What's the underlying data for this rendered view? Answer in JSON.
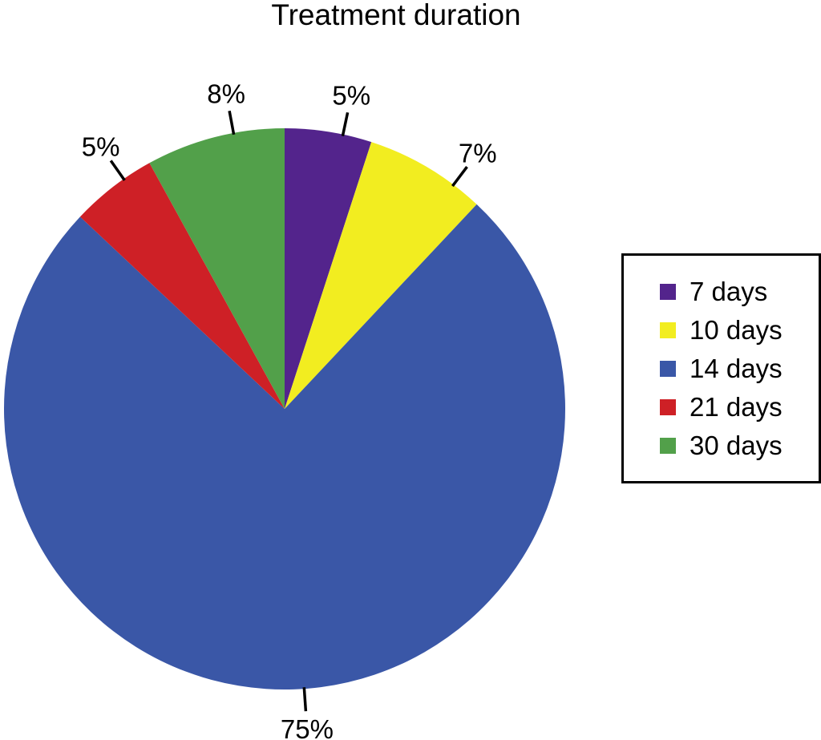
{
  "page": {
    "background": "#FFFFFF"
  },
  "chart_data": {
    "type": "pie",
    "title": "Treatment duration",
    "unit": "%",
    "legend_position": "right",
    "direction": "clockwise",
    "start_angle_deg": 0,
    "label_color": "#000000",
    "leader_line_color": "#000000",
    "legend_border_color": "#000000",
    "slices": [
      {
        "label": "7 days",
        "value": 5,
        "percent_label": "5%",
        "color": "#53248C",
        "label_angle": 12
      },
      {
        "label": "10 days",
        "value": 7,
        "percent_label": "7%",
        "color": "#F2ED20",
        "label_angle": 37
      },
      {
        "label": "14 days",
        "value": 75,
        "percent_label": "75%",
        "color": "#3A57A7",
        "label_angle": 176
      },
      {
        "label": "21 days",
        "value": 5,
        "percent_label": "5%",
        "color": "#CE2026",
        "label_angle": 325
      },
      {
        "label": "30 days",
        "value": 8,
        "percent_label": "8%",
        "color": "#52A04A",
        "label_angle": 349.5
      }
    ]
  }
}
